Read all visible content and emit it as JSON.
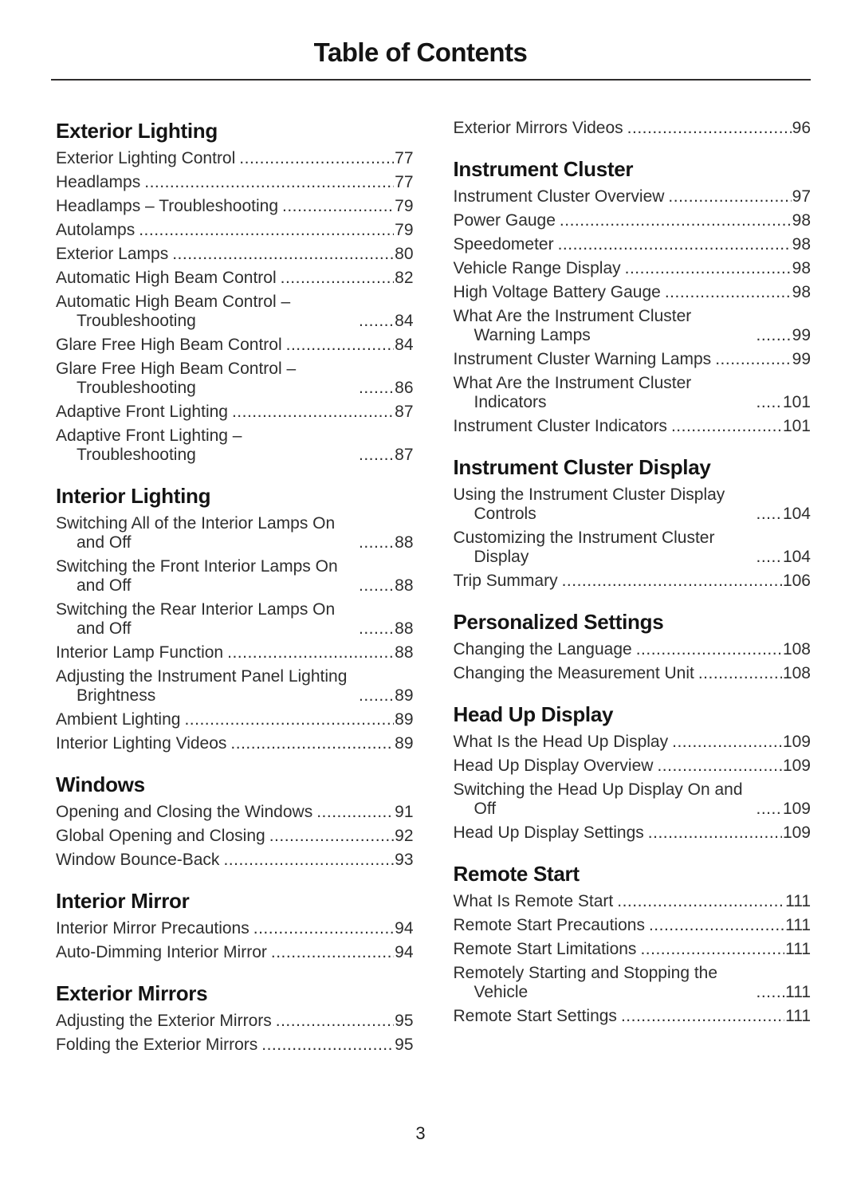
{
  "page": {
    "title": "Table of Contents",
    "page_number": "3"
  },
  "colors": {
    "background": "#ffffff",
    "heading_text": "#141414",
    "body_text": "#2e2e2e",
    "rule": "#2f2c2c"
  },
  "columns": [
    {
      "sections": [
        {
          "title": "Exterior Lighting",
          "entries": [
            {
              "label": "Exterior Lighting Control",
              "page": "77"
            },
            {
              "label": "Headlamps",
              "page": "77"
            },
            {
              "label": "Headlamps – Troubleshooting",
              "page": "79"
            },
            {
              "label": "Autolamps",
              "page": "79"
            },
            {
              "label": "Exterior Lamps",
              "page": "80"
            },
            {
              "label": "Automatic High Beam Control",
              "page": "82"
            },
            {
              "label": "Automatic High Beam Control – Troubleshooting",
              "page": "84"
            },
            {
              "label": "Glare Free High Beam Control",
              "page": "84"
            },
            {
              "label": "Glare Free High Beam Control – Troubleshooting",
              "page": "86"
            },
            {
              "label": "Adaptive Front Lighting",
              "page": "87"
            },
            {
              "label": "Adaptive Front Lighting – Troubleshooting",
              "page": "87"
            }
          ]
        },
        {
          "title": "Interior Lighting",
          "entries": [
            {
              "label": "Switching All of the Interior Lamps On and Off",
              "page": "88"
            },
            {
              "label": "Switching the Front Interior Lamps On and Off",
              "page": "88"
            },
            {
              "label": "Switching the Rear Interior Lamps On and Off",
              "page": "88"
            },
            {
              "label": "Interior Lamp Function",
              "page": "88"
            },
            {
              "label": "Adjusting the Instrument Panel Lighting Brightness",
              "page": "89"
            },
            {
              "label": "Ambient Lighting",
              "page": "89"
            },
            {
              "label": "Interior Lighting Videos",
              "page": "89"
            }
          ]
        },
        {
          "title": "Windows",
          "entries": [
            {
              "label": "Opening and Closing the Windows",
              "page": "91"
            },
            {
              "label": "Global Opening and Closing",
              "page": "92"
            },
            {
              "label": "Window Bounce-Back",
              "page": "93"
            }
          ]
        },
        {
          "title": "Interior Mirror",
          "entries": [
            {
              "label": "Interior Mirror Precautions",
              "page": "94"
            },
            {
              "label": "Auto-Dimming Interior Mirror",
              "page": "94"
            }
          ]
        },
        {
          "title": "Exterior Mirrors",
          "entries": [
            {
              "label": "Adjusting the Exterior Mirrors",
              "page": "95"
            },
            {
              "label": "Folding the Exterior Mirrors",
              "page": "95"
            }
          ]
        }
      ]
    },
    {
      "sections": [
        {
          "title": "",
          "entries": [
            {
              "label": "Exterior Mirrors Videos",
              "page": "96"
            }
          ]
        },
        {
          "title": "Instrument Cluster",
          "entries": [
            {
              "label": "Instrument Cluster Overview",
              "page": "97"
            },
            {
              "label": "Power Gauge",
              "page": "98"
            },
            {
              "label": "Speedometer",
              "page": "98"
            },
            {
              "label": "Vehicle Range Display",
              "page": "98"
            },
            {
              "label": "High Voltage Battery Gauge",
              "page": "98"
            },
            {
              "label": "What Are the Instrument Cluster Warning Lamps",
              "page": "99"
            },
            {
              "label": "Instrument Cluster Warning Lamps",
              "page": "99"
            },
            {
              "label": "What Are the Instrument Cluster Indicators",
              "page": "101"
            },
            {
              "label": "Instrument Cluster Indicators",
              "page": "101"
            }
          ]
        },
        {
          "title": "Instrument Cluster Display",
          "entries": [
            {
              "label": "Using the Instrument Cluster Display Controls",
              "page": "104"
            },
            {
              "label": "Customizing the Instrument Cluster Display",
              "page": "104"
            },
            {
              "label": "Trip Summary",
              "page": "106"
            }
          ]
        },
        {
          "title": "Personalized Settings",
          "entries": [
            {
              "label": "Changing the Language",
              "page": "108"
            },
            {
              "label": "Changing the Measurement Unit",
              "page": "108"
            }
          ]
        },
        {
          "title": "Head Up Display",
          "entries": [
            {
              "label": "What Is the Head Up Display",
              "page": "109"
            },
            {
              "label": "Head Up Display Overview",
              "page": "109"
            },
            {
              "label": "Switching the Head Up Display On and Off",
              "page": "109"
            },
            {
              "label": "Head Up Display Settings",
              "page": "109"
            }
          ]
        },
        {
          "title": "Remote Start",
          "entries": [
            {
              "label": "What Is Remote Start",
              "page": "111"
            },
            {
              "label": "Remote Start Precautions",
              "page": "111"
            },
            {
              "label": "Remote Start Limitations",
              "page": "111"
            },
            {
              "label": "Remotely Starting and Stopping the Vehicle",
              "page": "111"
            },
            {
              "label": "Remote Start Settings",
              "page": "111"
            }
          ]
        }
      ]
    }
  ]
}
